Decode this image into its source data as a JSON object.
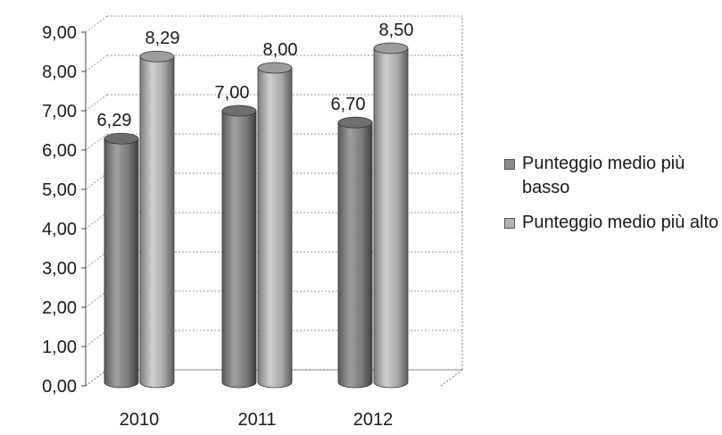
{
  "chart_data": {
    "type": "bar",
    "categories": [
      "2010",
      "2011",
      "2012"
    ],
    "series": [
      {
        "name": "Punteggio medio più basso",
        "values": [
          6.29,
          7.0,
          6.7
        ],
        "labels": [
          "6,29",
          "7,00",
          "6,70"
        ],
        "color": "#8a8a8a"
      },
      {
        "name": "Punteggio medio più alto",
        "values": [
          8.29,
          8.0,
          8.5
        ],
        "labels": [
          "8,29",
          "8,00",
          "8,50"
        ],
        "color": "#b4b4b4"
      }
    ],
    "y_ticks": [
      "0,00",
      "1,00",
      "2,00",
      "3,00",
      "4,00",
      "5,00",
      "6,00",
      "7,00",
      "8,00",
      "9,00"
    ],
    "ylim": [
      0,
      9
    ],
    "title": "",
    "xlabel": "",
    "ylabel": "",
    "legend_position": "right",
    "grid": true,
    "style": "3d-cylinder"
  }
}
